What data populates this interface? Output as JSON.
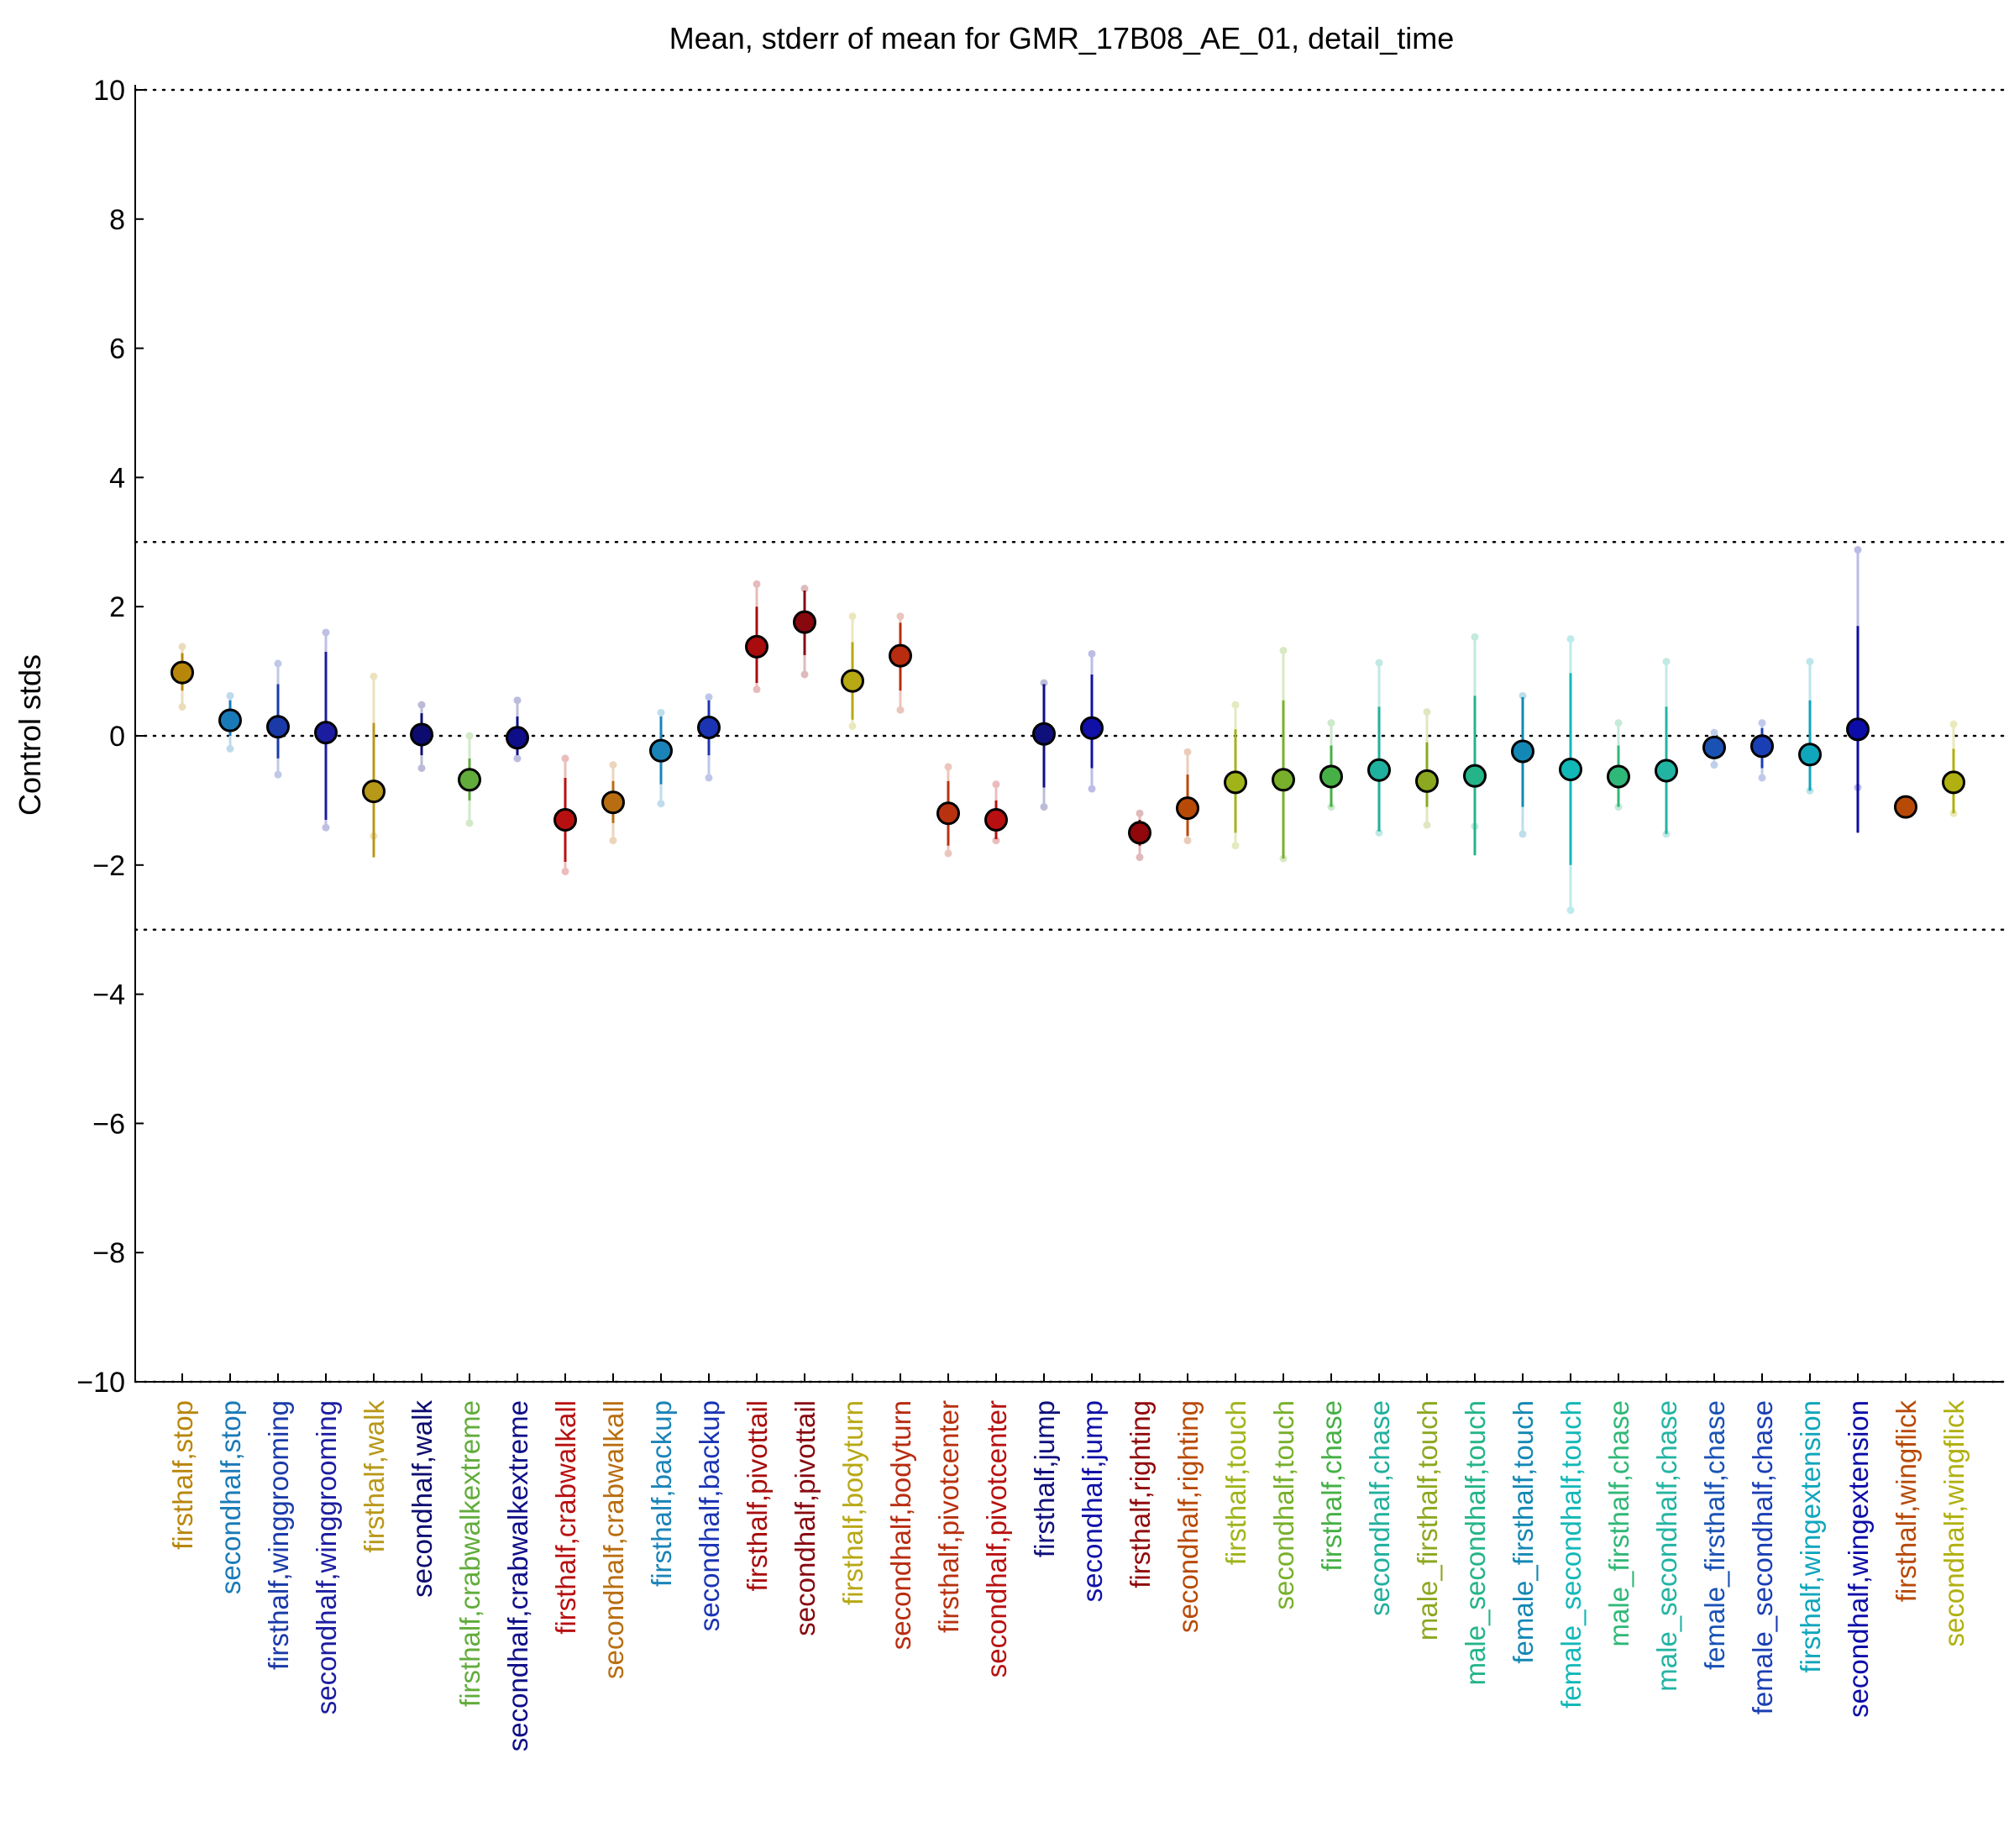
{
  "chart_data": {
    "type": "scatter",
    "title": "Mean, stderr of mean for GMR_17B08_AE_01, detail_time",
    "xlabel": "",
    "ylabel": "Control stds",
    "ylim": [
      -10,
      10
    ],
    "yticks": [
      10,
      8,
      6,
      4,
      2,
      0,
      -2,
      -4,
      -6,
      -8,
      -10
    ],
    "ytick_labels": [
      "10",
      "8",
      "6",
      "4",
      "2",
      "0",
      "−2",
      "−4",
      "−6",
      "−8",
      "−10"
    ],
    "reference_lines": [
      10,
      3,
      0,
      -3,
      -10
    ],
    "categories": [
      "firsthalf,stop",
      "secondhalf,stop",
      "firsthalf,winggrooming",
      "secondhalf,winggrooming",
      "firsthalf,walk",
      "secondhalf,walk",
      "firsthalf,crabwalkextreme",
      "secondhalf,crabwalkextreme",
      "firsthalf,crabwalkall",
      "secondhalf,crabwalkall",
      "firsthalf,backup",
      "secondhalf,backup",
      "firsthalf,pivottail",
      "secondhalf,pivottail",
      "firsthalf,bodyturn",
      "secondhalf,bodyturn",
      "firsthalf,pivotcenter",
      "secondhalf,pivotcenter",
      "firsthalf,jump",
      "secondhalf,jump",
      "firsthalf,righting",
      "secondhalf,righting",
      "firsthalf,touch",
      "secondhalf,touch",
      "firsthalf,chase",
      "secondhalf,chase",
      "male_firsthalf,touch",
      "male_secondhalf,touch",
      "female_firsthalf,touch",
      "female_secondhalf,touch",
      "male_firsthalf,chase",
      "male_secondhalf,chase",
      "female_firsthalf,chase",
      "female_secondhalf,chase",
      "firsthalf,wingextension",
      "secondhalf,wingextension",
      "firsthalf,wingflick",
      "secondhalf,wingflick"
    ],
    "means": [
      0.98,
      0.24,
      0.14,
      0.05,
      -0.86,
      0.02,
      -0.68,
      -0.03,
      -1.3,
      -1.03,
      -0.23,
      0.13,
      1.38,
      1.76,
      0.85,
      1.24,
      -1.2,
      -1.3,
      0.03,
      0.12,
      -1.5,
      -1.12,
      -0.72,
      -0.68,
      -0.63,
      -0.53,
      -0.7,
      -0.62,
      -0.24,
      -0.52,
      -0.63,
      -0.54,
      -0.18,
      -0.16,
      -0.29,
      0.1,
      -1.1,
      -0.72
    ],
    "stderr_low": [
      0.7,
      0.0,
      -0.35,
      -1.3,
      -1.88,
      -0.3,
      -1.0,
      -0.3,
      -1.95,
      -1.35,
      -0.75,
      -0.3,
      0.82,
      1.25,
      0.25,
      0.7,
      -1.7,
      -1.6,
      -0.8,
      -0.5,
      -1.7,
      -1.55,
      -1.5,
      -1.9,
      -1.1,
      -1.48,
      -1.1,
      -1.85,
      -1.1,
      -2.0,
      -1.1,
      -1.52,
      -0.35,
      -0.5,
      -0.85,
      -1.5,
      -1.1,
      -1.2
    ],
    "stderr_high": [
      1.28,
      0.55,
      0.8,
      1.3,
      0.2,
      0.35,
      -0.35,
      0.3,
      -0.65,
      -0.7,
      0.3,
      0.55,
      2.0,
      2.25,
      1.45,
      1.75,
      -0.7,
      -1.0,
      0.8,
      0.95,
      -1.3,
      -0.6,
      0.1,
      0.55,
      -0.15,
      0.45,
      -0.1,
      0.62,
      0.6,
      0.97,
      -0.15,
      0.45,
      0.0,
      0.12,
      0.55,
      1.7,
      -1.1,
      -0.2
    ],
    "range_low": [
      0.45,
      -0.2,
      -0.6,
      -1.42,
      -1.55,
      -0.5,
      -1.35,
      -0.35,
      -2.1,
      -1.62,
      -1.05,
      -0.65,
      0.72,
      0.95,
      0.15,
      0.4,
      -1.82,
      -1.62,
      -1.1,
      -0.82,
      -1.88,
      -1.62,
      -1.7,
      -1.9,
      -1.1,
      -1.5,
      -1.38,
      -1.4,
      -1.52,
      -2.7,
      -1.1,
      -1.52,
      -0.45,
      -0.65,
      -0.85,
      -0.8,
      -1.1,
      -1.2
    ],
    "range_high": [
      1.38,
      0.62,
      1.12,
      1.6,
      0.92,
      0.48,
      0.0,
      0.55,
      -0.35,
      -0.45,
      0.36,
      0.6,
      2.35,
      2.28,
      1.85,
      1.85,
      -0.48,
      -0.75,
      0.82,
      1.27,
      -1.2,
      -0.25,
      0.48,
      1.32,
      0.2,
      1.13,
      0.37,
      1.53,
      0.62,
      1.5,
      0.2,
      1.15,
      0.05,
      0.2,
      1.15,
      2.88,
      -1.1,
      0.18
    ],
    "colors": [
      "#b8860b",
      "#1a7ab8",
      "#1a3aa8",
      "#1c1ca0",
      "#b89818",
      "#0c0c70",
      "#62ac3c",
      "#0e0e88",
      "#b81010",
      "#b86e10",
      "#1a84b8",
      "#1a34b4",
      "#a80c0c",
      "#880810",
      "#b8a814",
      "#b82c10",
      "#b83210",
      "#b81010",
      "#10107c",
      "#1010a8",
      "#90080c",
      "#b84a08",
      "#a0b41a",
      "#78b02c",
      "#46b046",
      "#20b09e",
      "#8ca820",
      "#24b48a",
      "#1488b4",
      "#12b8b8",
      "#30b878",
      "#22b4a2",
      "#1a52b4",
      "#1a3eb4",
      "#10a6bc",
      "#0c0ca8",
      "#b84a08",
      "#b0b010"
    ]
  }
}
